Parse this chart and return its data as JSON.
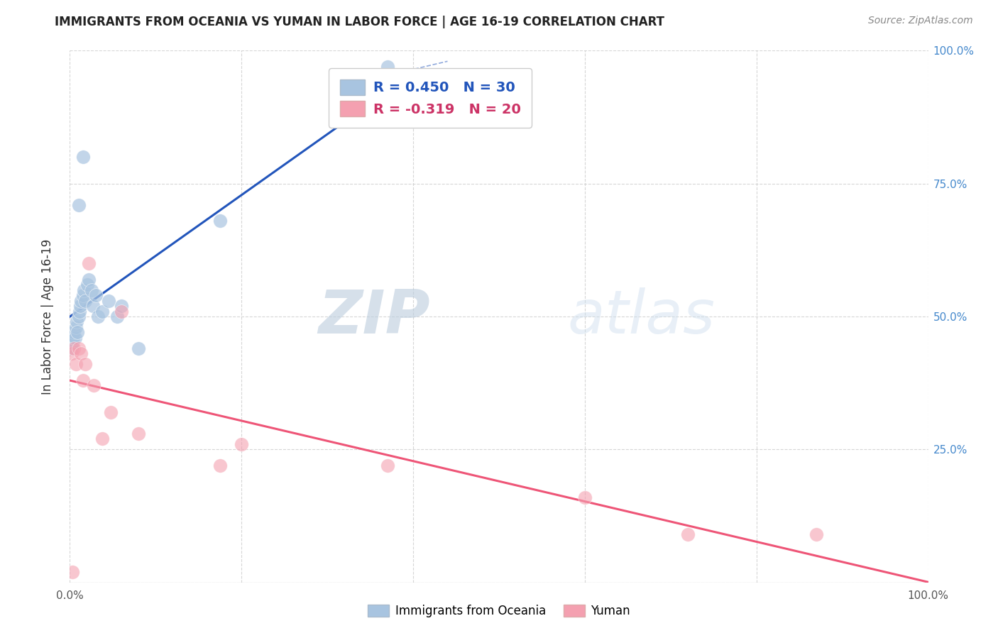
{
  "title": "IMMIGRANTS FROM OCEANIA VS YUMAN IN LABOR FORCE | AGE 16-19 CORRELATION CHART",
  "source": "Source: ZipAtlas.com",
  "ylabel": "In Labor Force | Age 16-19",
  "watermark_zip": "ZIP",
  "watermark_atlas": "atlas",
  "blue_color": "#A8C4E0",
  "pink_color": "#F4A0B0",
  "blue_line_color": "#2255BB",
  "pink_line_color": "#EE5577",
  "legend_R_blue": "R = 0.450",
  "legend_N_blue": "N = 30",
  "legend_R_pink": "R = -0.319",
  "legend_N_pink": "N = 20",
  "blue_x": [
    0.002,
    0.003,
    0.004,
    0.005,
    0.006,
    0.007,
    0.008,
    0.009,
    0.01,
    0.011,
    0.012,
    0.013,
    0.015,
    0.016,
    0.018,
    0.02,
    0.022,
    0.025,
    0.027,
    0.03,
    0.033,
    0.038,
    0.045,
    0.055,
    0.06,
    0.08,
    0.01,
    0.015,
    0.175,
    0.37
  ],
  "blue_y": [
    0.44,
    0.45,
    0.46,
    0.47,
    0.46,
    0.48,
    0.49,
    0.47,
    0.5,
    0.51,
    0.52,
    0.53,
    0.54,
    0.55,
    0.53,
    0.56,
    0.57,
    0.55,
    0.52,
    0.54,
    0.5,
    0.51,
    0.53,
    0.5,
    0.52,
    0.44,
    0.71,
    0.8,
    0.68,
    0.97
  ],
  "pink_x": [
    0.002,
    0.005,
    0.007,
    0.01,
    0.013,
    0.015,
    0.018,
    0.022,
    0.028,
    0.038,
    0.048,
    0.06,
    0.08,
    0.175,
    0.2,
    0.37,
    0.6,
    0.72,
    0.87,
    0.003
  ],
  "pink_y": [
    0.43,
    0.44,
    0.41,
    0.44,
    0.43,
    0.38,
    0.41,
    0.6,
    0.37,
    0.27,
    0.32,
    0.51,
    0.28,
    0.22,
    0.26,
    0.22,
    0.16,
    0.09,
    0.09,
    0.02
  ],
  "background_color": "#FFFFFF",
  "grid_color": "#CCCCCC"
}
